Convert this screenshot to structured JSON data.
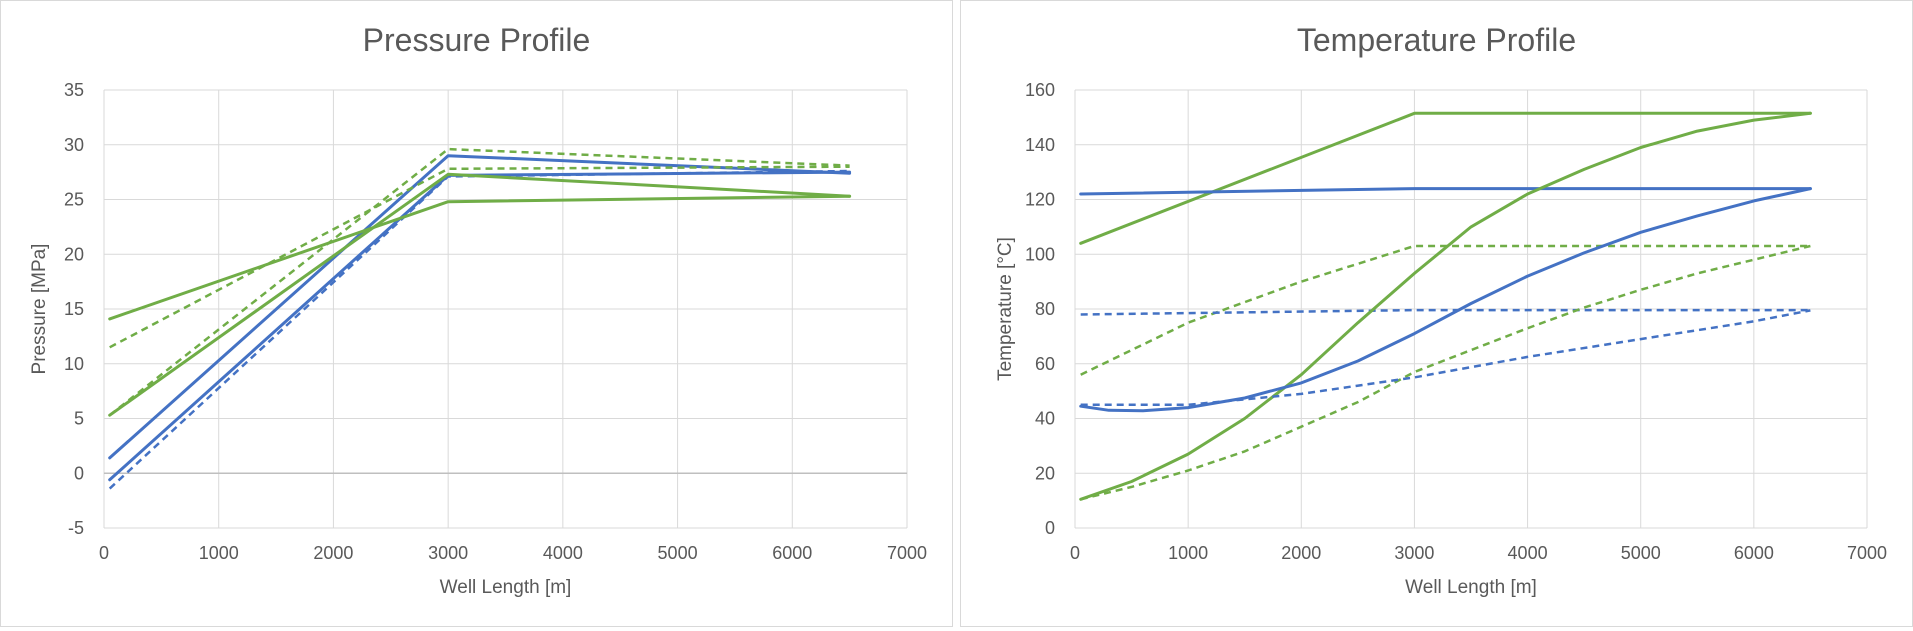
{
  "colors": {
    "blue": "#4472c4",
    "green": "#70ad47",
    "grid": "#d9d9d9",
    "text": "#595959",
    "zero_axis": "#bfbfbf"
  },
  "chart_data": [
    {
      "type": "line",
      "title": "Pressure Profile",
      "xlabel": "Well Length [m]",
      "ylabel": "Pressure [MPa]",
      "xlim": [
        0,
        7000
      ],
      "ylim": [
        -5,
        35
      ],
      "xticks": [
        0,
        1000,
        2000,
        3000,
        4000,
        5000,
        6000,
        7000
      ],
      "yticks": [
        -5,
        0,
        5,
        10,
        15,
        20,
        25,
        30,
        35
      ],
      "grid": true,
      "legend": "none",
      "series": [
        {
          "color": "blue",
          "dash": false,
          "x": [
            50,
            3000,
            6500
          ],
          "y": [
            1.4,
            29.0,
            27.4
          ]
        },
        {
          "color": "blue",
          "dash": false,
          "x": [
            50,
            3000,
            6500
          ],
          "y": [
            -0.6,
            27.2,
            27.5
          ]
        },
        {
          "color": "blue",
          "dash": true,
          "x": [
            50,
            3000,
            6500
          ],
          "y": [
            -1.4,
            27.1,
            27.6
          ]
        },
        {
          "color": "green",
          "dash": false,
          "x": [
            50,
            3000,
            6500
          ],
          "y": [
            14.1,
            24.8,
            25.3
          ]
        },
        {
          "color": "green",
          "dash": false,
          "x": [
            50,
            3000,
            6500
          ],
          "y": [
            5.3,
            27.3,
            25.3
          ]
        },
        {
          "color": "green",
          "dash": true,
          "x": [
            50,
            3000,
            6500
          ],
          "y": [
            11.5,
            27.8,
            28.0
          ]
        },
        {
          "color": "green",
          "dash": true,
          "x": [
            50,
            3000,
            6500
          ],
          "y": [
            5.3,
            29.6,
            28.1
          ]
        }
      ]
    },
    {
      "type": "line",
      "title": "Temperature Profile",
      "xlabel": "Well Length [m]",
      "ylabel": "Temperature [°C]",
      "xlim": [
        0,
        7000
      ],
      "ylim": [
        0,
        160
      ],
      "xticks": [
        0,
        1000,
        2000,
        3000,
        4000,
        5000,
        6000,
        7000
      ],
      "yticks": [
        0,
        20,
        40,
        60,
        80,
        100,
        120,
        140,
        160
      ],
      "grid": true,
      "legend": "none",
      "series": [
        {
          "color": "green",
          "dash": false,
          "x": [
            50,
            3000,
            6500
          ],
          "y": [
            104,
            151.5,
            151.5
          ]
        },
        {
          "color": "blue",
          "dash": false,
          "x": [
            50,
            3000,
            6500
          ],
          "y": [
            122,
            124,
            124
          ]
        },
        {
          "color": "green",
          "dash": true,
          "x": [
            50,
            1000,
            2000,
            3000,
            6500
          ],
          "y": [
            56,
            75,
            90,
            103,
            103
          ]
        },
        {
          "color": "blue",
          "dash": true,
          "x": [
            50,
            3000,
            6500
          ],
          "y": [
            78,
            79.6,
            79.6
          ]
        },
        {
          "color": "green",
          "dash": false,
          "x": [
            50,
            500,
            1000,
            1500,
            2000,
            2500,
            3000,
            3500,
            4000,
            4500,
            5000,
            5500,
            6000,
            6500
          ],
          "y": [
            10.5,
            17,
            27,
            40,
            56,
            75,
            93,
            110,
            122,
            131,
            139,
            145,
            149,
            151.5
          ]
        },
        {
          "color": "blue",
          "dash": false,
          "x": [
            50,
            300,
            600,
            1000,
            1500,
            2000,
            2500,
            3000,
            3500,
            4000,
            4500,
            5000,
            5500,
            6000,
            6500
          ],
          "y": [
            44.5,
            43,
            42.8,
            44,
            47.5,
            53,
            61,
            71,
            82,
            92,
            100.5,
            108,
            114,
            119.5,
            124
          ]
        },
        {
          "color": "green",
          "dash": true,
          "x": [
            50,
            500,
            1000,
            1500,
            2000,
            2500,
            3000,
            3500,
            4000,
            4500,
            5000,
            5500,
            6000,
            6500
          ],
          "y": [
            10.5,
            15,
            21,
            28,
            37,
            46,
            57,
            65,
            73,
            80.5,
            87,
            93,
            98,
            103
          ]
        },
        {
          "color": "blue",
          "dash": true,
          "x": [
            50,
            1000,
            2000,
            3000,
            4000,
            5000,
            6000,
            6500
          ],
          "y": [
            45,
            45,
            49,
            55,
            62.5,
            69,
            75.5,
            79.5
          ]
        }
      ]
    }
  ]
}
